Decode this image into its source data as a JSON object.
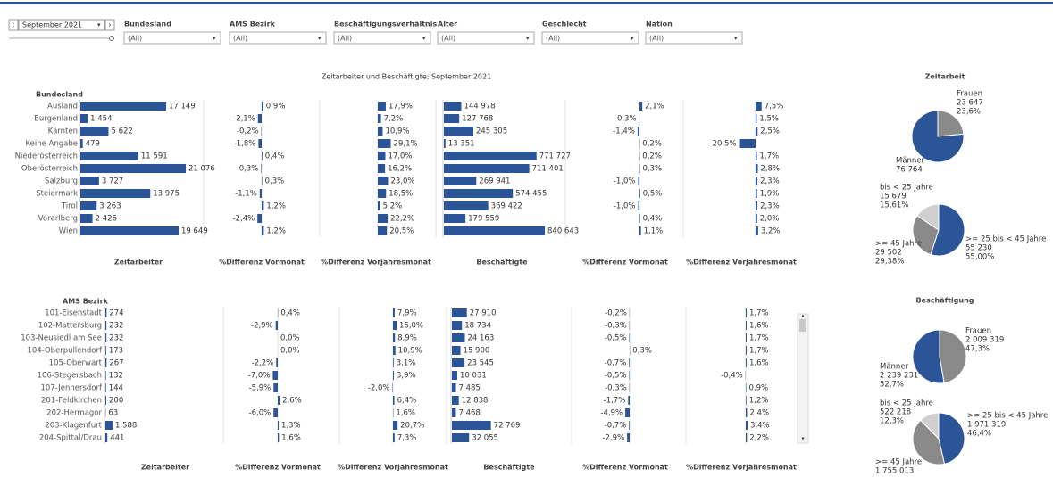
{
  "date_filter": "September 2021",
  "filters": [
    {
      "name": "Bundesland",
      "value": "(All)"
    },
    {
      "name": "AMS Bezirk",
      "value": "(All)"
    },
    {
      "name": "Beschäftigungsverhältnis",
      "value": "(All)"
    },
    {
      "name": "Alter",
      "value": "(All)"
    },
    {
      "name": "Geschlecht",
      "value": "(All)"
    },
    {
      "name": "Nation",
      "value": "(All)"
    }
  ],
  "title": "Zeitarbeiter und Beschäftigte; September 2021",
  "tables": [
    {
      "row_header": "Bundesland",
      "columns": [
        "Zeitarbeiter",
        "%Differenz Vormonat",
        "%Differenz  Vorjahresmonat",
        "Beschäftigte",
        "%Differenz Vormonat",
        "%Differenz Vorjahresmonat"
      ],
      "rows": [
        {
          "label": "Ausland",
          "values": [
            17149,
            0.9,
            17.9,
            144978,
            2.1,
            7.5
          ],
          "value_labels": [
            "17 149",
            "0,9%",
            "17,9%",
            "144 978",
            "2,1%",
            "7,5%"
          ]
        },
        {
          "label": "Burgenland",
          "values": [
            1454,
            -2.1,
            7.2,
            127768,
            -0.3,
            1.5
          ],
          "value_labels": [
            "1 454",
            "-2,1%",
            "7,2%",
            "127 768",
            "-0,3%",
            "1,5%"
          ]
        },
        {
          "label": "Kärnten",
          "values": [
            5622,
            -0.2,
            10.9,
            245305,
            -1.4,
            2.5
          ],
          "value_labels": [
            "5 622",
            "-0,2%",
            "10,9%",
            "245 305",
            "-1,4%",
            "2,5%"
          ]
        },
        {
          "label": "Keine Angabe",
          "values": [
            479,
            -1.8,
            29.1,
            13351,
            0.2,
            -20.5
          ],
          "value_labels": [
            "479",
            "-1,8%",
            "29,1%",
            "13 351",
            "0,2%",
            "-20,5%"
          ]
        },
        {
          "label": "Niederösterreich",
          "values": [
            11591,
            0.4,
            17.0,
            771727,
            0.2,
            1.7
          ],
          "value_labels": [
            "11 591",
            "0,4%",
            "17,0%",
            "771 727",
            "0,2%",
            "1,7%"
          ]
        },
        {
          "label": "Oberösterreich",
          "values": [
            21076,
            -0.3,
            16.2,
            711401,
            0.3,
            2.8
          ],
          "value_labels": [
            "21 076",
            "-0,3%",
            "16,2%",
            "711 401",
            "0,3%",
            "2,8%"
          ]
        },
        {
          "label": "Salzburg",
          "values": [
            3727,
            0.3,
            23.0,
            269941,
            -1.0,
            2.3
          ],
          "value_labels": [
            "3 727",
            "0,3%",
            "23,0%",
            "269 941",
            "-1,0%",
            "2,3%"
          ]
        },
        {
          "label": "Steiermark",
          "values": [
            13975,
            -1.1,
            18.5,
            574455,
            0.5,
            1.9
          ],
          "value_labels": [
            "13 975",
            "-1,1%",
            "18,5%",
            "574 455",
            "0,5%",
            "1,9%"
          ]
        },
        {
          "label": "Tirol",
          "values": [
            3263,
            1.2,
            5.2,
            369422,
            -1.0,
            2.3
          ],
          "value_labels": [
            "3 263",
            "1,2%",
            "5,2%",
            "369 422",
            "-1,0%",
            "2,3%"
          ]
        },
        {
          "label": "Vorarlberg",
          "values": [
            2426,
            -2.4,
            22.2,
            179559,
            0.4,
            2.0
          ],
          "value_labels": [
            "2 426",
            "-2,4%",
            "22,2%",
            "179 559",
            "0,4%",
            "2,0%"
          ]
        },
        {
          "label": "Wien",
          "values": [
            19649,
            1.2,
            20.5,
            840643,
            1.1,
            3.2
          ],
          "value_labels": [
            "19 649",
            "1,2%",
            "20,5%",
            "840 643",
            "1,1%",
            "3,2%"
          ]
        }
      ]
    },
    {
      "row_header": "AMS Bezirk",
      "columns": [
        "Zeitarbeiter",
        "%Differenz Vormonat",
        "%Differenz Vorjahresmonat",
        "Beschäftigte",
        "%Differenz Vormonat",
        "%Differenz Vorjahresmonat"
      ],
      "rows": [
        {
          "label": "101-Eisenstadt",
          "values": [
            274,
            0.4,
            7.9,
            27910,
            -0.2,
            1.7
          ],
          "value_labels": [
            "274",
            "0,4%",
            "7,9%",
            "27 910",
            "-0,2%",
            "1,7%"
          ]
        },
        {
          "label": "102-Mattersburg",
          "values": [
            232,
            -2.9,
            16.0,
            18734,
            -0.3,
            1.6
          ],
          "value_labels": [
            "232",
            "-2,9%",
            "16,0%",
            "18 734",
            "-0,3%",
            "1,6%"
          ]
        },
        {
          "label": "103-Neusiedl am See",
          "values": [
            232,
            0.0,
            8.9,
            24163,
            -0.5,
            1.7
          ],
          "value_labels": [
            "232",
            "0,0%",
            "8,9%",
            "24 163",
            "-0,5%",
            "1,7%"
          ]
        },
        {
          "label": "104-Oberpullendorf",
          "values": [
            173,
            0.0,
            10.9,
            15900,
            0.3,
            1.7
          ],
          "value_labels": [
            "173",
            "0,0%",
            "10,9%",
            "15 900",
            "0,3%",
            "1,7%"
          ]
        },
        {
          "label": "105-Oberwart",
          "values": [
            267,
            -2.2,
            3.1,
            23545,
            -0.7,
            1.6
          ],
          "value_labels": [
            "267",
            "-2,2%",
            "3,1%",
            "23 545",
            "-0,7%",
            "1,6%"
          ]
        },
        {
          "label": "106-Stegersbach",
          "values": [
            132,
            -7.0,
            3.9,
            10031,
            -0.5,
            -0.4
          ],
          "value_labels": [
            "132",
            "-7,0%",
            "3,9%",
            "10 031",
            "-0,5%",
            "-0,4%"
          ]
        },
        {
          "label": "107-Jennersdorf",
          "values": [
            144,
            -5.9,
            -2.0,
            7485,
            -0.3,
            0.9
          ],
          "value_labels": [
            "144",
            "-5,9%",
            "-2,0%",
            "7 485",
            "-0,3%",
            "0,9%"
          ]
        },
        {
          "label": "201-Feldkirchen",
          "values": [
            200,
            2.6,
            6.4,
            12838,
            -1.7,
            1.2
          ],
          "value_labels": [
            "200",
            "2,6%",
            "6,4%",
            "12 838",
            "-1,7%",
            "1,2%"
          ]
        },
        {
          "label": "202-Hermagor",
          "values": [
            63,
            -6.0,
            1.6,
            7468,
            -4.9,
            2.4
          ],
          "value_labels": [
            "63",
            "-6,0%",
            "1,6%",
            "7 468",
            "-4,9%",
            "2,4%"
          ]
        },
        {
          "label": "203-Klagenfurt",
          "values": [
            1588,
            1.3,
            20.7,
            72769,
            -0.7,
            3.4
          ],
          "value_labels": [
            "1 588",
            "1,3%",
            "20,7%",
            "72 769",
            "-0,7%",
            "3,4%"
          ]
        },
        {
          "label": "204-Spittal/Drau",
          "values": [
            441,
            1.6,
            7.3,
            32055,
            -2.9,
            2.2
          ],
          "value_labels": [
            "441",
            "1,6%",
            "7,3%",
            "32 055",
            "-2,9%",
            "2,2%"
          ]
        }
      ]
    }
  ],
  "pie_groups": [
    {
      "title": "Zeitarbeit",
      "pies": [
        {
          "slices": [
            {
              "name": "Frauen",
              "value": 23647,
              "value_label": "23 647",
              "share_label": "23,6%",
              "color": "#8a8a8a"
            },
            {
              "name": "Männer",
              "value": 76764,
              "value_label": "76 764",
              "color": "#2b5597"
            }
          ]
        },
        {
          "slices": [
            {
              "name": ">= 25 bis < 45 Jahre",
              "value": 55230,
              "value_label": "55 230",
              "share_label": "55,00%",
              "color": "#2b5597"
            },
            {
              "name": ">= 45 Jahre",
              "value": 29502,
              "value_label": "29 502",
              "share_label": "29,38%",
              "color": "#8a8a8a"
            },
            {
              "name": "bis < 25 Jahre",
              "value": 15679,
              "value_label": "15 679",
              "share_label": "15,61%",
              "color": "#cfcfcf"
            }
          ]
        }
      ]
    },
    {
      "title": "Beschäftigung",
      "pies": [
        {
          "slices": [
            {
              "name": "Frauen",
              "value": 2009319,
              "value_label": "2 009 319",
              "share_label": "47,3%",
              "color": "#8a8a8a"
            },
            {
              "name": "Männer",
              "value": 2239231,
              "value_label": "2 239 231",
              "share_label": "52,7%",
              "color": "#2b5597"
            }
          ]
        },
        {
          "slices": [
            {
              "name": ">= 25 bis < 45 Jahre",
              "value": 1971319,
              "value_label": "1 971 319",
              "share_label": "46,4%",
              "color": "#2b5597"
            },
            {
              "name": ">= 45 Jahre",
              "value": 1755013,
              "value_label": "1 755 013",
              "color": "#8a8a8a"
            },
            {
              "name": "bis < 25 Jahre",
              "value": 522218,
              "value_label": "522 218",
              "share_label": "12,3%",
              "color": "#cfcfcf"
            }
          ]
        }
      ]
    }
  ]
}
